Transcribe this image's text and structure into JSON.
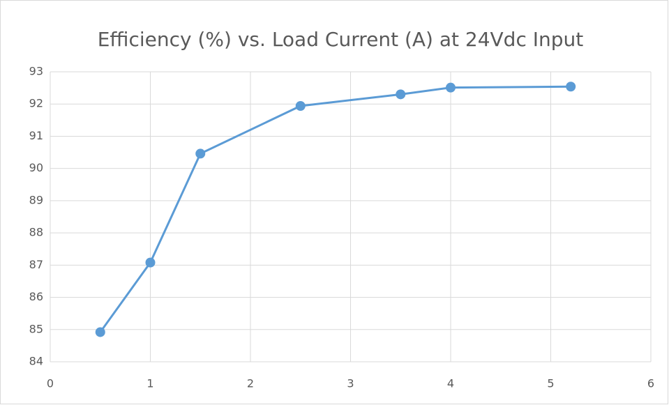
{
  "chart_data": {
    "type": "line",
    "title": "Efficiency (%) vs. Load Current (A) at 24Vdc Input",
    "x": [
      0.5,
      1,
      1.5,
      2.5,
      3.5,
      4,
      5.2
    ],
    "series": [
      {
        "name": "Efficiency",
        "color": "#5b9bd5",
        "values": [
          84.92,
          87.08,
          90.46,
          91.94,
          92.3,
          92.51,
          92.54
        ]
      }
    ],
    "xlim": [
      0,
      6
    ],
    "xticks": [
      0,
      1,
      2,
      3,
      4,
      5,
      6
    ],
    "ylim": [
      84,
      93
    ],
    "yticks": [
      84,
      85,
      86,
      87,
      88,
      89,
      90,
      91,
      92,
      93
    ],
    "grid": true
  }
}
